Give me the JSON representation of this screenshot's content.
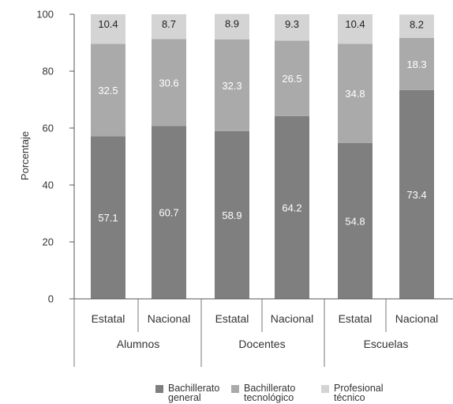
{
  "chart_data": {
    "type": "bar",
    "stacked": true,
    "ylabel": "Porcentaje",
    "ylim": [
      0,
      100
    ],
    "yticks": [
      0,
      20,
      40,
      60,
      80,
      100
    ],
    "grid": false,
    "legend_position": "bottom",
    "categories": [
      "Estatal",
      "Nacional",
      "Estatal",
      "Nacional",
      "Estatal",
      "Nacional"
    ],
    "groups": [
      "Alumnos",
      "Docentes",
      "Escuelas"
    ],
    "series": [
      {
        "name": "Bachillerato general",
        "color": "#7f7f7f",
        "label_color": "#ffffff",
        "values": [
          57.1,
          60.7,
          58.9,
          64.2,
          54.8,
          73.4
        ]
      },
      {
        "name": "Bachillerato tecnológico",
        "color": "#aaaaaa",
        "label_color": "#ffffff",
        "values": [
          32.5,
          30.6,
          32.3,
          26.5,
          34.8,
          18.3
        ]
      },
      {
        "name": "Profesional técnico",
        "color": "#d4d4d4",
        "label_color": "#222222",
        "values": [
          10.4,
          8.7,
          8.9,
          9.3,
          10.4,
          8.2
        ]
      }
    ],
    "legend_lines": [
      [
        "Bachillerato",
        "general"
      ],
      [
        "Bachillerato",
        "tecnológico"
      ],
      [
        "Profesional",
        "técnico"
      ]
    ]
  }
}
